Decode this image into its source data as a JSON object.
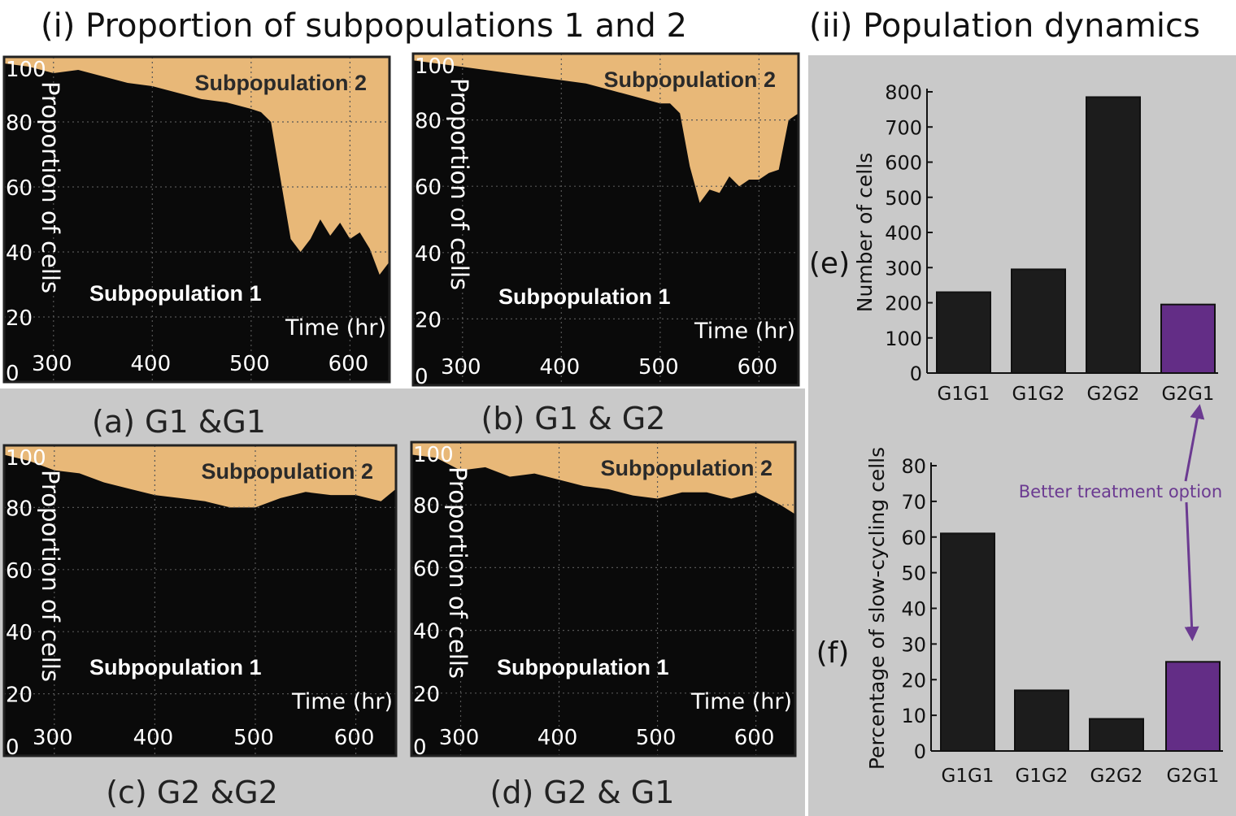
{
  "headers": {
    "left": "(i) Proportion of subpopulations 1 and 2",
    "right": "(ii) Population dynamics"
  },
  "area_panels": [
    {
      "caption": "(a) G1 &G1",
      "ylabel": "Proportion of cells",
      "xlabel": "Time (hr)",
      "label_top": "Subpopulation 2",
      "label_bottom": "Subpopulation 1",
      "yticks": [
        "100",
        "80",
        "60",
        "40",
        "20",
        "0"
      ],
      "xticks": [
        "300",
        "400",
        "500",
        "600"
      ]
    },
    {
      "caption": "(b) G1 & G2",
      "ylabel": "Proportion of cells",
      "xlabel": "Time (hr)",
      "label_top": "Subpopulation 2",
      "label_bottom": "Subpopulation 1",
      "yticks": [
        "100",
        "80",
        "60",
        "40",
        "20",
        "0"
      ],
      "xticks": [
        "300",
        "400",
        "500",
        "600"
      ]
    },
    {
      "caption": "(c) G2 &G2",
      "ylabel": "Proportion of cells",
      "xlabel": "Time (hr)",
      "label_top": "Subpopulation 2",
      "label_bottom": "Subpopulation 1",
      "yticks": [
        "100",
        "80",
        "60",
        "40",
        "20",
        "0"
      ],
      "xticks": [
        "300",
        "400",
        "500",
        "600"
      ]
    },
    {
      "caption": "(d) G2 & G1",
      "ylabel": "Proportion of cells",
      "xlabel": "Time (hr)",
      "label_top": "Subpopulation 2",
      "label_bottom": "Subpopulation 1",
      "yticks": [
        "100",
        "80",
        "60",
        "40",
        "20",
        "0"
      ],
      "xticks": [
        "300",
        "400",
        "500",
        "600"
      ]
    }
  ],
  "bar_panels": [
    {
      "tag": "(e)",
      "ylabel": "Number of cells",
      "yticks": [
        "0",
        "100",
        "200",
        "300",
        "400",
        "500",
        "600",
        "700",
        "800"
      ]
    },
    {
      "tag": "(f)",
      "ylabel": "Percentage of slow-cycling cells",
      "yticks": [
        "0",
        "10",
        "20",
        "30",
        "40",
        "50",
        "60",
        "70",
        "80"
      ]
    }
  ],
  "annotation": "Better treatment option",
  "colors": {
    "subpopulation_1": "#0a0a0a",
    "subpopulation_2": "#e8b878",
    "bar_default": "#1c1c1c",
    "bar_highlight": "#632d86",
    "panel_background": "#c9c9c9",
    "annotation": "#6b3a91"
  },
  "chart_data": [
    {
      "type": "area",
      "panel": "(a) G1 &G1",
      "x": [
        250,
        275,
        300,
        325,
        350,
        375,
        400,
        425,
        450,
        475,
        500,
        510,
        520,
        530,
        540,
        550,
        560,
        570,
        580,
        590,
        600,
        610,
        620,
        630,
        640
      ],
      "series": [
        {
          "name": "Subpopulation 1",
          "values": [
            98,
            97,
            95,
            96,
            94,
            92,
            91,
            89,
            87,
            86,
            84,
            83,
            80,
            62,
            44,
            40,
            44,
            50,
            45,
            49,
            44,
            46,
            41,
            33,
            37
          ]
        },
        {
          "name": "Subpopulation 2",
          "values": [
            2,
            3,
            5,
            4,
            6,
            8,
            9,
            11,
            13,
            14,
            16,
            17,
            20,
            38,
            56,
            60,
            56,
            50,
            55,
            51,
            56,
            54,
            59,
            67,
            63
          ]
        }
      ],
      "xlabel": "Time (hr)",
      "ylabel": "Proportion of cells",
      "xlim": [
        250,
        640
      ],
      "ylim": [
        0,
        100
      ],
      "grid": true
    },
    {
      "type": "area",
      "panel": "(b) G1 & G2",
      "x": [
        250,
        275,
        300,
        325,
        350,
        375,
        400,
        425,
        450,
        475,
        500,
        510,
        520,
        530,
        540,
        550,
        560,
        570,
        580,
        590,
        600,
        610,
        620,
        630,
        640
      ],
      "series": [
        {
          "name": "Subpopulation 1",
          "values": [
            98,
            97,
            96,
            95,
            94,
            93,
            92,
            91,
            89,
            87,
            85,
            85,
            82,
            66,
            55,
            59,
            58,
            63,
            60,
            62,
            62,
            64,
            65,
            80,
            82
          ]
        },
        {
          "name": "Subpopulation 2",
          "values": [
            2,
            3,
            4,
            5,
            6,
            7,
            8,
            9,
            11,
            13,
            15,
            15,
            18,
            34,
            45,
            41,
            42,
            37,
            40,
            38,
            38,
            36,
            35,
            20,
            18
          ]
        }
      ],
      "xlabel": "Time (hr)",
      "ylabel": "Proportion of cells",
      "xlim": [
        250,
        640
      ],
      "ylim": [
        0,
        100
      ],
      "grid": true
    },
    {
      "type": "area",
      "panel": "(c) G2 &G2",
      "x": [
        250,
        275,
        300,
        325,
        350,
        375,
        400,
        425,
        450,
        475,
        500,
        525,
        550,
        575,
        600,
        625,
        640
      ],
      "series": [
        {
          "name": "Subpopulation 1",
          "values": [
            97,
            95,
            92,
            91,
            88,
            86,
            84,
            83,
            82,
            80,
            80,
            83,
            85,
            84,
            84,
            82,
            86
          ]
        },
        {
          "name": "Subpopulation 2",
          "values": [
            3,
            5,
            8,
            9,
            12,
            14,
            16,
            17,
            18,
            20,
            20,
            17,
            15,
            16,
            16,
            18,
            14
          ]
        }
      ],
      "xlabel": "Time (hr)",
      "ylabel": "Proportion of cells",
      "xlim": [
        250,
        640
      ],
      "ylim": [
        0,
        100
      ],
      "grid": true
    },
    {
      "type": "area",
      "panel": "(d) G2 & G1",
      "x": [
        250,
        275,
        300,
        325,
        350,
        375,
        400,
        425,
        450,
        475,
        500,
        525,
        550,
        575,
        600,
        625,
        640
      ],
      "series": [
        {
          "name": "Subpopulation 1",
          "values": [
            96,
            95,
            91,
            92,
            89,
            90,
            88,
            86,
            85,
            83,
            82,
            84,
            84,
            82,
            84,
            80,
            77
          ]
        },
        {
          "name": "Subpopulation 2",
          "values": [
            4,
            5,
            9,
            8,
            11,
            10,
            12,
            14,
            15,
            17,
            18,
            16,
            16,
            18,
            16,
            20,
            23
          ]
        }
      ],
      "xlabel": "Time (hr)",
      "ylabel": "Proportion of cells",
      "xlim": [
        250,
        640
      ],
      "ylim": [
        0,
        100
      ],
      "grid": true
    },
    {
      "type": "bar",
      "panel": "(e)",
      "categories": [
        "G1G1",
        "G1G2",
        "G2G2",
        "G2G1"
      ],
      "values": [
        230,
        295,
        785,
        195
      ],
      "ylabel": "Number of cells",
      "ylim": [
        0,
        800
      ]
    },
    {
      "type": "bar",
      "panel": "(f)",
      "categories": [
        "G1G1",
        "G1G2",
        "G2G2",
        "G2G1"
      ],
      "values": [
        61,
        17,
        9,
        25
      ],
      "ylabel": "Percentage of slow-cycling cells",
      "ylim": [
        0,
        80
      ]
    }
  ]
}
